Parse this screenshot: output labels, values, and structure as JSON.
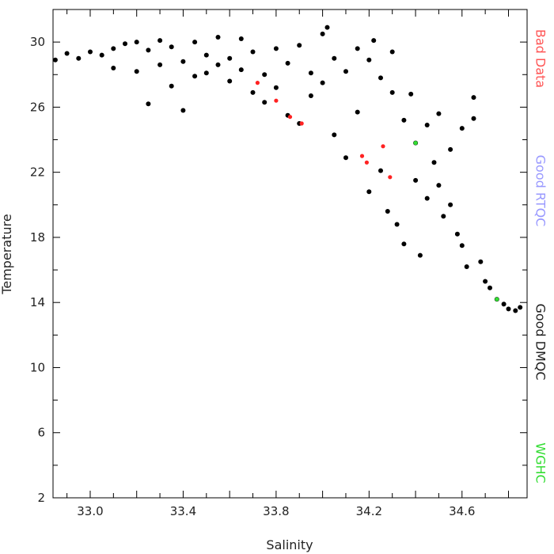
{
  "chart_data": {
    "type": "scatter",
    "title": "",
    "xlabel": "Salinity",
    "ylabel": "Temperature",
    "xlim": [
      32.84,
      34.88
    ],
    "ylim": [
      2,
      32
    ],
    "x_ticks": [
      "33.0",
      "33.4",
      "33.8",
      "34.2",
      "34.6"
    ],
    "x_tick_values": [
      33.0,
      33.4,
      33.8,
      34.2,
      34.6
    ],
    "y_ticks": [
      "2",
      "6",
      "10",
      "14",
      "18",
      "22",
      "26",
      "30"
    ],
    "y_tick_values": [
      2,
      6,
      10,
      14,
      18,
      22,
      26,
      30
    ],
    "legend_position": "right-vertical",
    "legend": [
      {
        "label": "Bad Data",
        "color": "#ff5555"
      },
      {
        "label": "Good RTQC",
        "color": "#9999ff"
      },
      {
        "label": "Good DMQC",
        "color": "#222222"
      },
      {
        "label": "WGHC",
        "color": "#33dd33"
      }
    ],
    "series": [
      {
        "name": "Good DMQC",
        "color": "#000000",
        "points": [
          [
            32.85,
            28.9
          ],
          [
            32.9,
            29.3
          ],
          [
            32.95,
            29.0
          ],
          [
            33.0,
            29.4
          ],
          [
            33.05,
            29.2
          ],
          [
            33.1,
            29.6
          ],
          [
            33.1,
            28.4
          ],
          [
            33.15,
            29.9
          ],
          [
            33.2,
            28.2
          ],
          [
            33.2,
            30.0
          ],
          [
            33.25,
            29.5
          ],
          [
            33.25,
            26.2
          ],
          [
            33.3,
            28.6
          ],
          [
            33.3,
            30.1
          ],
          [
            33.35,
            27.3
          ],
          [
            33.35,
            29.7
          ],
          [
            33.4,
            25.8
          ],
          [
            33.4,
            28.8
          ],
          [
            33.45,
            30.0
          ],
          [
            33.45,
            27.9
          ],
          [
            33.5,
            29.2
          ],
          [
            33.5,
            28.1
          ],
          [
            33.55,
            30.3
          ],
          [
            33.55,
            28.6
          ],
          [
            33.6,
            29.0
          ],
          [
            33.6,
            27.6
          ],
          [
            33.65,
            30.2
          ],
          [
            33.65,
            28.3
          ],
          [
            33.7,
            26.9
          ],
          [
            33.7,
            29.4
          ],
          [
            33.75,
            28.0
          ],
          [
            33.75,
            26.3
          ],
          [
            33.8,
            29.6
          ],
          [
            33.8,
            27.2
          ],
          [
            33.85,
            25.5
          ],
          [
            33.85,
            28.7
          ],
          [
            33.9,
            29.8
          ],
          [
            33.9,
            25.0
          ],
          [
            33.95,
            28.1
          ],
          [
            33.95,
            26.7
          ],
          [
            34.0,
            30.5
          ],
          [
            34.0,
            27.5
          ],
          [
            34.02,
            30.9
          ],
          [
            34.05,
            29.0
          ],
          [
            34.05,
            24.3
          ],
          [
            34.1,
            28.2
          ],
          [
            34.1,
            22.9
          ],
          [
            34.15,
            29.6
          ],
          [
            34.15,
            25.7
          ],
          [
            34.2,
            28.9
          ],
          [
            34.2,
            20.8
          ],
          [
            34.22,
            30.1
          ],
          [
            34.25,
            27.8
          ],
          [
            34.25,
            22.1
          ],
          [
            34.28,
            19.6
          ],
          [
            34.3,
            26.9
          ],
          [
            34.3,
            29.4
          ],
          [
            34.32,
            18.8
          ],
          [
            34.35,
            25.2
          ],
          [
            34.35,
            17.6
          ],
          [
            34.38,
            26.8
          ],
          [
            34.4,
            23.8
          ],
          [
            34.4,
            21.5
          ],
          [
            34.42,
            16.9
          ],
          [
            34.45,
            24.9
          ],
          [
            34.45,
            20.4
          ],
          [
            34.48,
            22.6
          ],
          [
            34.5,
            25.6
          ],
          [
            34.5,
            21.2
          ],
          [
            34.52,
            19.3
          ],
          [
            34.55,
            23.4
          ],
          [
            34.55,
            20.0
          ],
          [
            34.58,
            18.2
          ],
          [
            34.6,
            24.7
          ],
          [
            34.6,
            17.5
          ],
          [
            34.62,
            16.2
          ],
          [
            34.65,
            26.6
          ],
          [
            34.65,
            25.3
          ],
          [
            34.68,
            16.5
          ],
          [
            34.7,
            15.3
          ],
          [
            34.72,
            14.9
          ],
          [
            34.75,
            14.2
          ],
          [
            34.78,
            13.9
          ],
          [
            34.8,
            13.6
          ],
          [
            34.83,
            13.5
          ],
          [
            34.85,
            13.7
          ]
        ]
      },
      {
        "name": "Bad Data",
        "color": "#ff2222",
        "points": [
          [
            33.72,
            27.5
          ],
          [
            33.8,
            26.4
          ],
          [
            33.86,
            25.4
          ],
          [
            33.91,
            25.0
          ],
          [
            34.17,
            23.0
          ],
          [
            34.19,
            22.6
          ],
          [
            34.26,
            23.6
          ],
          [
            34.29,
            21.7
          ]
        ]
      },
      {
        "name": "WGHC",
        "color": "#33dd33",
        "points": [
          [
            34.4,
            23.8
          ],
          [
            34.75,
            14.2
          ]
        ]
      }
    ]
  }
}
